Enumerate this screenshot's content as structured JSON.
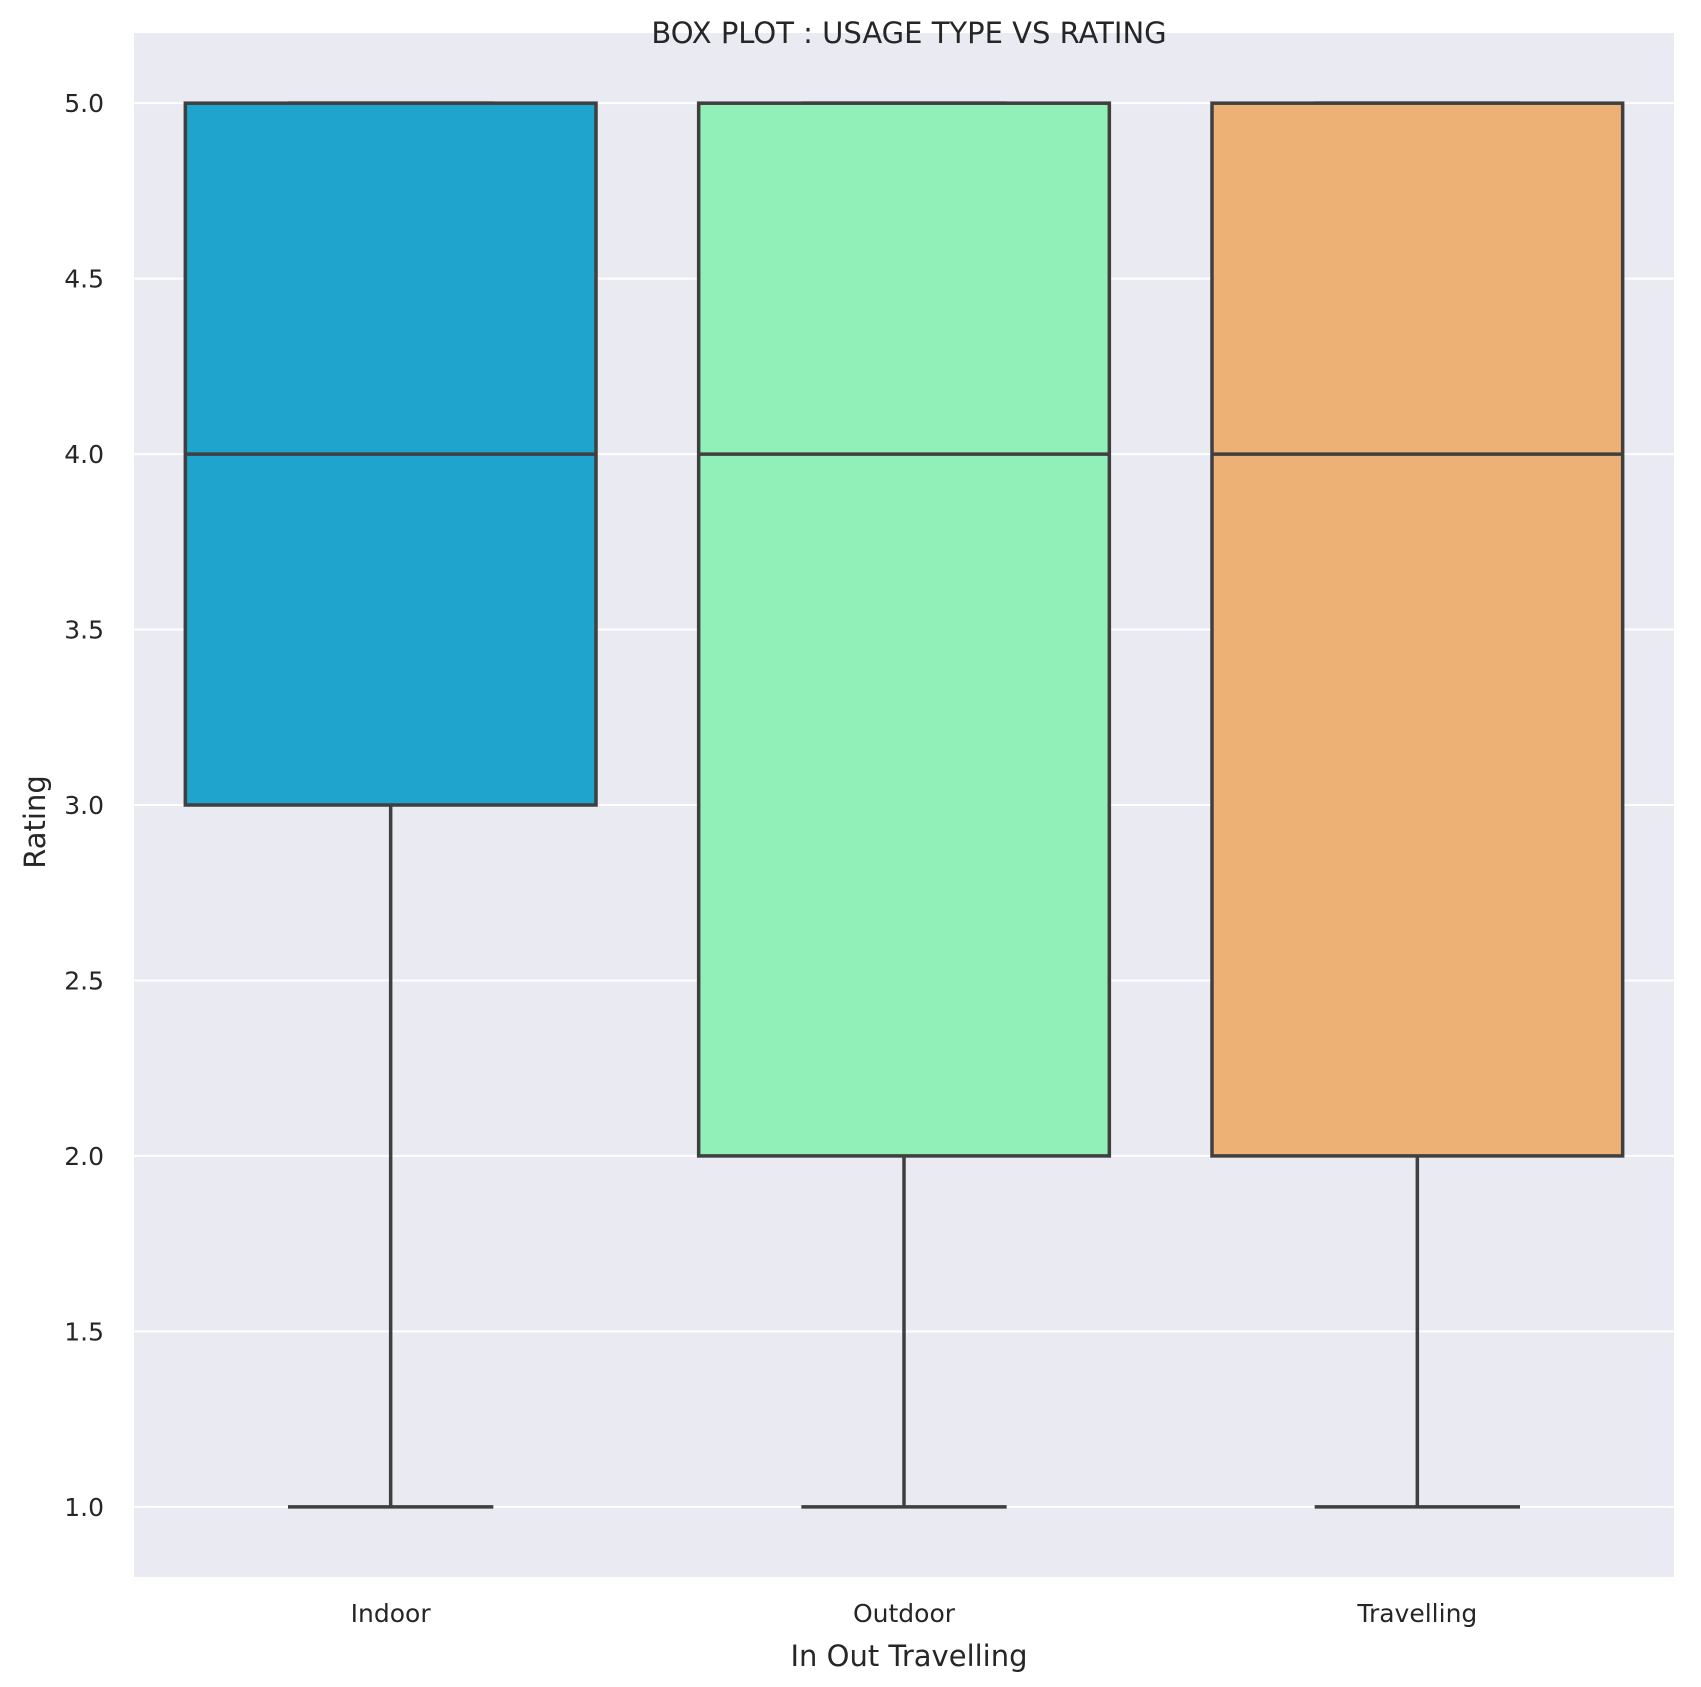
{
  "chart_data": {
    "type": "box",
    "title": "BOX PLOT : USAGE TYPE VS RATING",
    "xlabel": "In Out Travelling",
    "ylabel": "Rating",
    "ylim": [
      0.8,
      5.2
    ],
    "yticks": [
      "1.0",
      "1.5",
      "2.0",
      "2.5",
      "3.0",
      "3.5",
      "4.0",
      "4.5",
      "5.0"
    ],
    "grid": true,
    "categories": [
      "Indoor",
      "Outdoor",
      "Travelling"
    ],
    "boxes": [
      {
        "category": "Indoor",
        "min": 1.0,
        "q1": 3.0,
        "median": 4.0,
        "q3": 5.0,
        "max": 5.0,
        "color": "#1fa5cd"
      },
      {
        "category": "Outdoor",
        "min": 1.0,
        "q1": 2.0,
        "median": 4.0,
        "q3": 5.0,
        "max": 5.0,
        "color": "#91f0b7"
      },
      {
        "category": "Travelling",
        "min": 1.0,
        "q1": 2.0,
        "median": 4.0,
        "q3": 5.0,
        "max": 5.0,
        "color": "#edb176"
      }
    ]
  },
  "colors": {
    "plot_background": "#eaeaf2",
    "grid": "#ffffff",
    "box_edge": "#3f3f3f"
  }
}
